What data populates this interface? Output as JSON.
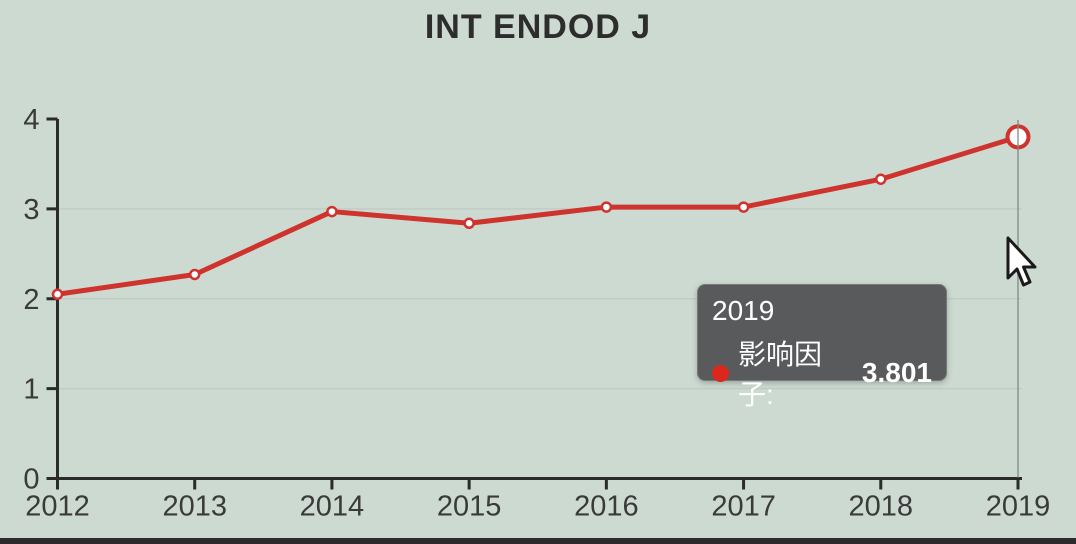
{
  "title": "INT ENDOD J",
  "colors": {
    "background": "#ccdad1",
    "line": "#cf332d",
    "marker_fill": "#ffffff",
    "axis": "#2b2b2b",
    "tick_label": "#3a3a3a",
    "gridline": "rgba(0,0,0,0.06)",
    "crosshair": "#7d8a85",
    "tooltip_background": "#545457",
    "tooltip_text": "#ffffff",
    "tooltip_dot": "#dc281c",
    "bottom_bar": "#2c2c2c"
  },
  "tooltip": {
    "year": "2019",
    "series_label": "影响因子:",
    "value": "3.801"
  },
  "chart_data": {
    "type": "line",
    "title": "INT ENDOD J",
    "categories": [
      "2012",
      "2013",
      "2014",
      "2015",
      "2016",
      "2017",
      "2018",
      "2019"
    ],
    "series": [
      {
        "name": "影响因子",
        "values": [
          2.05,
          2.27,
          2.97,
          2.84,
          3.02,
          3.02,
          3.33,
          3.801
        ]
      }
    ],
    "xlabel": "",
    "ylabel": "",
    "ylim": [
      0,
      4
    ],
    "yticks": [
      0,
      1,
      2,
      3,
      4
    ],
    "grid": true,
    "legend_position": "none",
    "highlighted_point": {
      "category": "2019",
      "value": 3.801
    }
  }
}
